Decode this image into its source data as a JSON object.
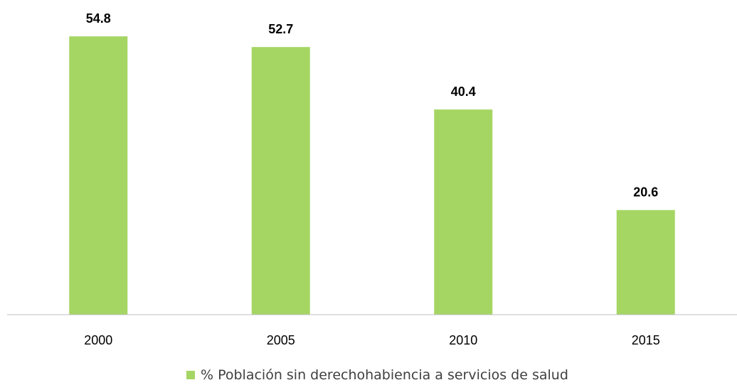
{
  "chart_data": {
    "type": "bar",
    "categories": [
      "2000",
      "2005",
      "2010",
      "2015"
    ],
    "series": [
      {
        "name": "% Población sin derechohabiencia a servicios de salud",
        "values": [
          54.8,
          52.7,
          40.4,
          20.6
        ],
        "color": "#a5d664"
      }
    ],
    "title": "",
    "xlabel": "",
    "ylabel": "",
    "ylim": [
      0,
      60
    ],
    "grid": false,
    "legend_position": "bottom",
    "data_labels": [
      "54.8",
      "52.7",
      "40.4",
      "20.6"
    ],
    "axis_color": "#bfbfbf"
  }
}
